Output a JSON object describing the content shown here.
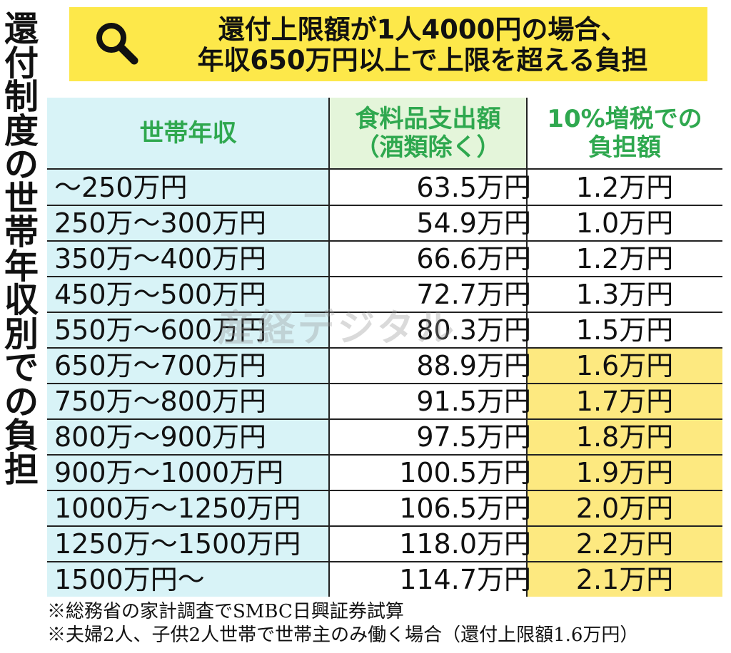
{
  "vertical_title": "還付制度の世帯年収別での負担",
  "banner": {
    "icon": "search-icon",
    "line1": "還付上限額が1人4000円の場合、",
    "line2": "年収650万円以上で上限を超える負担"
  },
  "colors": {
    "banner_bg": "#fde84a",
    "header_text": "#2fa84f",
    "income_col_bg": "#d8f3f7",
    "food_header_bg": "#e4f5da",
    "over_limit_bg": "#fde980"
  },
  "chart_data": {
    "type": "table",
    "columns": [
      "世帯年収",
      "食料品支出額（酒類除く）",
      "10%増税での負担額"
    ],
    "header_lines": {
      "income": [
        "世帯年収"
      ],
      "food": [
        "食料品支出額",
        "（酒類除く）"
      ],
      "tax": [
        "10%増税での",
        "負担額"
      ]
    },
    "rows": [
      {
        "income": "～250万円",
        "food": "63.5万円",
        "tax": "1.2万円",
        "over_limit": false
      },
      {
        "income": "250万～300万円",
        "food": "54.9万円",
        "tax": "1.0万円",
        "over_limit": false
      },
      {
        "income": "350万～400万円",
        "food": "66.6万円",
        "tax": "1.2万円",
        "over_limit": false
      },
      {
        "income": "450万～500万円",
        "food": "72.7万円",
        "tax": "1.3万円",
        "over_limit": false
      },
      {
        "income": "550万～600万円",
        "food": "80.3万円",
        "tax": "1.5万円",
        "over_limit": false
      },
      {
        "income": "650万～700万円",
        "food": "88.9万円",
        "tax": "1.6万円",
        "over_limit": true
      },
      {
        "income": "750万～800万円",
        "food": "91.5万円",
        "tax": "1.7万円",
        "over_limit": true
      },
      {
        "income": "800万～900万円",
        "food": "97.5万円",
        "tax": "1.8万円",
        "over_limit": true
      },
      {
        "income": "900万～1000万円",
        "food": "100.5万円",
        "tax": "1.9万円",
        "over_limit": true
      },
      {
        "income": "1000万～1250万円",
        "food": "106.5万円",
        "tax": "2.0万円",
        "over_limit": true
      },
      {
        "income": "1250万～1500万円",
        "food": "118.0万円",
        "tax": "2.2万円",
        "over_limit": true
      },
      {
        "income": "1500万円～",
        "food": "114.7万円",
        "tax": "2.1万円",
        "over_limit": true
      }
    ]
  },
  "notes": [
    "※総務省の家計調査でSMBC日興証券試算",
    "※夫婦2人、子供2人世帯で世帯主のみ働く場合（還付上限額1.6万円）"
  ],
  "watermark": "産経デジタル"
}
